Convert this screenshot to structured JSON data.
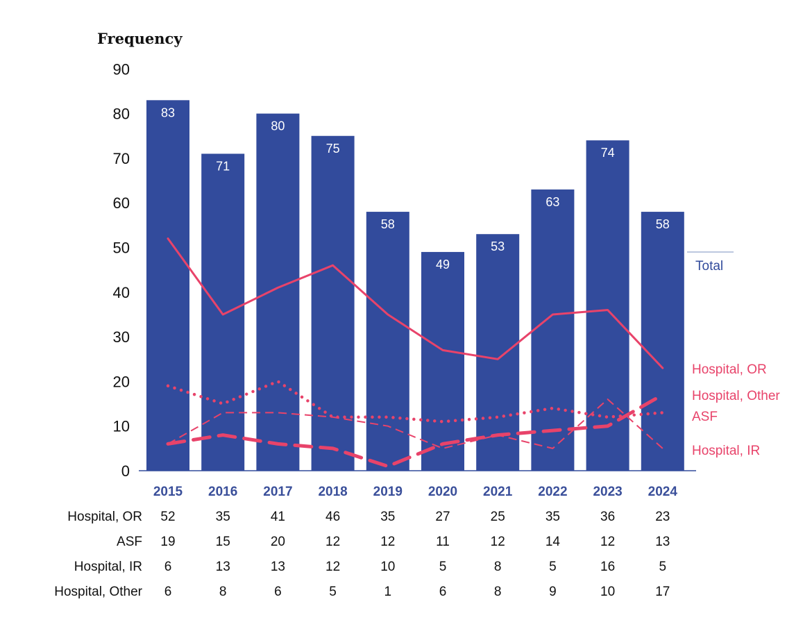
{
  "chart_data": {
    "type": "bar",
    "ylabel": "Frequency",
    "ylim": [
      0,
      90
    ],
    "yticks": [
      0,
      10,
      20,
      30,
      40,
      50,
      60,
      70,
      80,
      90
    ],
    "categories": [
      "2015",
      "2016",
      "2017",
      "2018",
      "2019",
      "2020",
      "2021",
      "2022",
      "2023",
      "2024"
    ],
    "total": {
      "name": "Total",
      "values": [
        83,
        71,
        80,
        75,
        58,
        49,
        53,
        63,
        74,
        58
      ]
    },
    "series": [
      {
        "name": "Hospital, OR",
        "style": "solid",
        "values": [
          52,
          35,
          41,
          46,
          35,
          27,
          25,
          35,
          36,
          23
        ]
      },
      {
        "name": "ASF",
        "style": "dotted",
        "values": [
          19,
          15,
          20,
          12,
          12,
          11,
          12,
          14,
          12,
          13
        ]
      },
      {
        "name": "Hospital, IR",
        "style": "dashed-thin",
        "values": [
          6,
          13,
          13,
          12,
          10,
          5,
          8,
          5,
          16,
          5
        ]
      },
      {
        "name": "Hospital, Other",
        "style": "dashed-thick",
        "values": [
          6,
          8,
          6,
          5,
          1,
          6,
          8,
          9,
          10,
          17
        ]
      }
    ],
    "table_rows": [
      "Hospital, OR",
      "ASF",
      "Hospital, IR",
      "Hospital, Other"
    ]
  },
  "colors": {
    "bar": "#324b9c",
    "line": "#e8436a",
    "year_label": "#3a4f9a",
    "text": "#111111",
    "bar_label": "#ffffff"
  }
}
